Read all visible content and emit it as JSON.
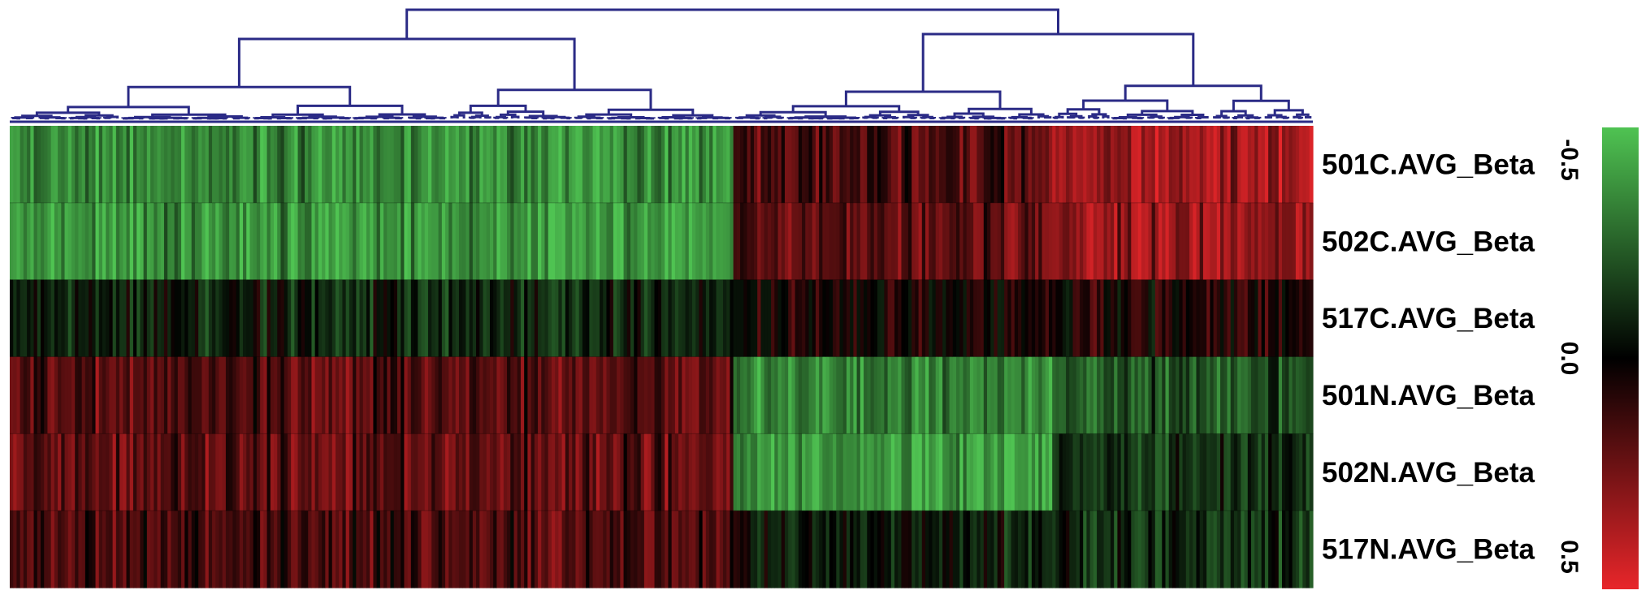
{
  "chart_data": {
    "type": "heatmap",
    "title": "",
    "xlabel": "",
    "ylabel": "",
    "rows": [
      "501C.AVG_Beta",
      "502C.AVG_Beta",
      "517C.AVG_Beta",
      "501N.AVG_Beta",
      "502N.AVG_Beta",
      "517N.AVG_Beta"
    ],
    "column_clusters": [
      {
        "name": "",
        "column_share": 0.555,
        "row_means": [
          -0.35,
          -0.38,
          -0.08,
          0.18,
          0.2,
          0.15
        ]
      },
      {
        "name": "",
        "column_share": 0.245,
        "row_means": [
          0.16,
          0.2,
          0.04,
          -0.33,
          -0.38,
          -0.06
        ]
      },
      {
        "name": "",
        "column_share": 0.2,
        "row_means": [
          0.32,
          0.3,
          0.05,
          -0.2,
          -0.12,
          -0.1
        ]
      }
    ],
    "colorscale": {
      "min": -0.5,
      "mid": 0.0,
      "max": 0.5,
      "min_color": "#4fc352",
      "mid_color": "#000000",
      "max_color": "#e8262a"
    },
    "legend": {
      "placement": "right",
      "ticks": [
        "-0.5",
        "0.0",
        "0.5"
      ]
    },
    "dendrogram": {
      "position": "top",
      "color": "#2b2b86"
    }
  }
}
